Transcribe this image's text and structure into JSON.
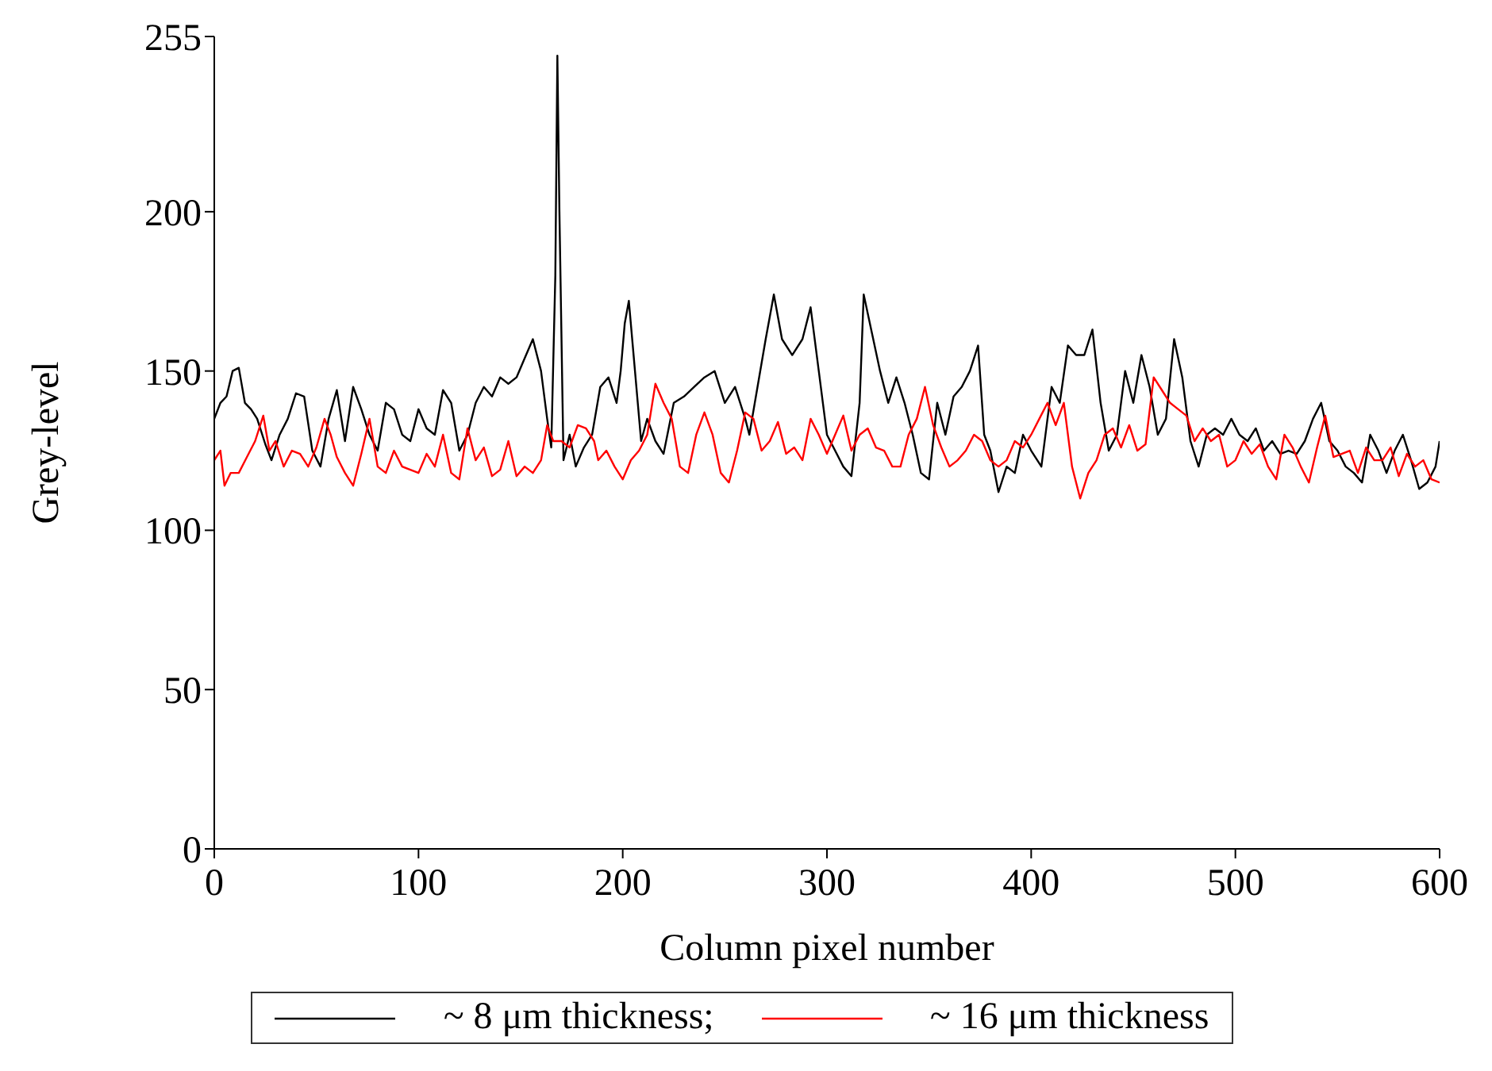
{
  "chart_data": {
    "type": "line",
    "xlabel": "Column pixel number",
    "ylabel": "Grey-level",
    "xlim": [
      0,
      600
    ],
    "xticks": [
      0,
      100,
      200,
      300,
      400,
      500,
      600
    ],
    "ylim": [
      0,
      255
    ],
    "yticks": [
      0,
      50,
      100,
      150,
      200,
      255
    ],
    "legend": "bottom",
    "marker": "none",
    "line_style": "solid",
    "series": [
      {
        "name": "~ 8 μm thickness;",
        "color": "#000000",
        "x": [
          0,
          3,
          6,
          9,
          12,
          15,
          18,
          21,
          25,
          28,
          32,
          36,
          40,
          44,
          48,
          52,
          56,
          60,
          64,
          68,
          72,
          76,
          80,
          84,
          88,
          92,
          96,
          100,
          104,
          108,
          112,
          116,
          120,
          124,
          128,
          132,
          136,
          140,
          144,
          148,
          152,
          156,
          160,
          163,
          165,
          167,
          168,
          169,
          171,
          174,
          177,
          181,
          185,
          189,
          193,
          197,
          199,
          201,
          203,
          206,
          209,
          212,
          216,
          220,
          225,
          230,
          235,
          240,
          245,
          250,
          255,
          260,
          262,
          266,
          270,
          274,
          278,
          283,
          288,
          292,
          296,
          300,
          304,
          308,
          312,
          316,
          318,
          322,
          326,
          330,
          334,
          338,
          342,
          346,
          350,
          354,
          358,
          362,
          366,
          370,
          374,
          377,
          380,
          384,
          388,
          392,
          396,
          400,
          405,
          410,
          414,
          418,
          422,
          426,
          430,
          434,
          438,
          442,
          446,
          450,
          454,
          458,
          462,
          466,
          470,
          474,
          478,
          482,
          486,
          490,
          494,
          498,
          502,
          506,
          510,
          514,
          518,
          522,
          526,
          530,
          534,
          538,
          542,
          546,
          550,
          554,
          558,
          562,
          566,
          570,
          574,
          578,
          582,
          586,
          590,
          594,
          598,
          600
        ],
        "values": [
          135,
          140,
          142,
          150,
          151,
          140,
          138,
          135,
          127,
          122,
          130,
          135,
          143,
          142,
          125,
          120,
          135,
          144,
          128,
          145,
          138,
          130,
          125,
          140,
          138,
          130,
          128,
          138,
          132,
          130,
          144,
          140,
          125,
          130,
          140,
          145,
          142,
          148,
          146,
          148,
          154,
          160,
          150,
          135,
          126,
          180,
          249,
          200,
          122,
          130,
          120,
          126,
          130,
          145,
          148,
          140,
          150,
          165,
          172,
          150,
          128,
          135,
          128,
          124,
          140,
          142,
          145,
          148,
          150,
          140,
          145,
          135,
          130,
          145,
          160,
          174,
          160,
          155,
          160,
          170,
          150,
          130,
          125,
          120,
          117,
          140,
          174,
          162,
          150,
          140,
          148,
          140,
          130,
          118,
          116,
          140,
          130,
          142,
          145,
          150,
          158,
          130,
          125,
          112,
          120,
          118,
          130,
          125,
          120,
          145,
          140,
          158,
          155,
          155,
          163,
          140,
          125,
          130,
          150,
          140,
          155,
          145,
          130,
          135,
          160,
          148,
          128,
          120,
          130,
          132,
          130,
          135,
          130,
          128,
          132,
          125,
          128,
          124,
          125,
          124,
          128,
          135,
          140,
          128,
          125,
          120,
          118,
          115,
          130,
          125,
          118,
          125,
          130,
          122,
          113,
          115,
          120,
          128
        ]
      },
      {
        "name": "~ 16 μm thickness",
        "color": "#ff0000",
        "x": [
          0,
          3,
          5,
          8,
          12,
          16,
          20,
          24,
          27,
          30,
          34,
          38,
          42,
          46,
          50,
          54,
          57,
          60,
          64,
          68,
          72,
          76,
          80,
          84,
          88,
          92,
          96,
          100,
          104,
          108,
          112,
          116,
          120,
          124,
          128,
          132,
          136,
          140,
          144,
          148,
          152,
          156,
          160,
          163,
          166,
          170,
          174,
          178,
          182,
          186,
          188,
          192,
          196,
          200,
          204,
          208,
          212,
          216,
          220,
          224,
          228,
          232,
          236,
          240,
          244,
          248,
          252,
          256,
          260,
          264,
          268,
          272,
          276,
          280,
          284,
          288,
          292,
          296,
          300,
          304,
          308,
          312,
          316,
          320,
          324,
          328,
          332,
          336,
          340,
          344,
          348,
          352,
          356,
          360,
          364,
          368,
          372,
          376,
          380,
          384,
          388,
          392,
          396,
          400,
          404,
          408,
          412,
          416,
          420,
          424,
          428,
          432,
          436,
          440,
          444,
          448,
          452,
          456,
          460,
          464,
          468,
          472,
          476,
          480,
          484,
          488,
          492,
          496,
          500,
          504,
          508,
          512,
          516,
          520,
          524,
          528,
          532,
          536,
          540,
          544,
          548,
          552,
          556,
          560,
          564,
          568,
          572,
          576,
          580,
          584,
          588,
          592,
          596,
          600
        ],
        "values": [
          122,
          125,
          114,
          118,
          118,
          123,
          128,
          136,
          125,
          128,
          120,
          125,
          124,
          120,
          126,
          135,
          130,
          123,
          118,
          114,
          124,
          135,
          120,
          118,
          125,
          120,
          119,
          118,
          124,
          120,
          130,
          118,
          116,
          132,
          122,
          126,
          117,
          119,
          128,
          117,
          120,
          118,
          122,
          133,
          128,
          128,
          126,
          133,
          132,
          128,
          122,
          125,
          120,
          116,
          122,
          125,
          130,
          146,
          140,
          135,
          120,
          118,
          130,
          137,
          130,
          118,
          115,
          125,
          137,
          135,
          125,
          128,
          134,
          124,
          126,
          122,
          135,
          130,
          124,
          130,
          136,
          125,
          130,
          132,
          126,
          125,
          120,
          120,
          130,
          135,
          145,
          133,
          126,
          120,
          122,
          125,
          130,
          128,
          122,
          120,
          122,
          128,
          126,
          130,
          135,
          140,
          133,
          140,
          120,
          110,
          118,
          122,
          130,
          132,
          126,
          133,
          125,
          127,
          148,
          144,
          140,
          138,
          136,
          128,
          132,
          128,
          130,
          120,
          122,
          128,
          124,
          127,
          120,
          116,
          130,
          126,
          120,
          115,
          126,
          136,
          123,
          124,
          125,
          118,
          126,
          122,
          122,
          126,
          117,
          124,
          120,
          122,
          116,
          115
        ]
      }
    ]
  }
}
